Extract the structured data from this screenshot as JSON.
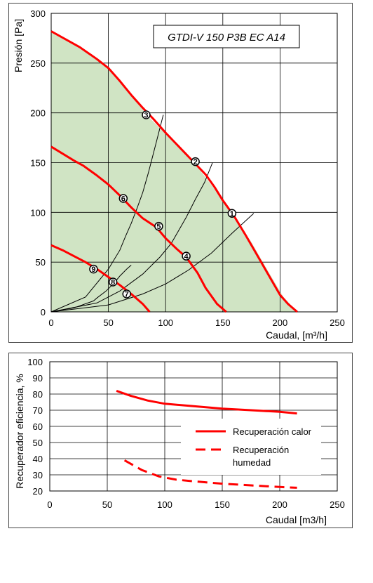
{
  "chart_data": [
    {
      "type": "line",
      "title": "GTDI-V 150 P3B EC A14",
      "xlabel": "Caudal, [m³/h]",
      "ylabel": "Presión [Pa]",
      "xlim": [
        0,
        250
      ],
      "ylim": [
        0,
        300
      ],
      "xticks": [
        "0",
        "50",
        "100",
        "150",
        "200",
        "250"
      ],
      "yticks": [
        "0",
        "50",
        "100",
        "150",
        "200",
        "250",
        "300"
      ],
      "grid": true,
      "colors": {
        "fan_curve": "#ff0000",
        "system_curve": "#000000",
        "area": "#d0e4c4"
      },
      "operating_area": [
        [
          0,
          282
        ],
        [
          25,
          266
        ],
        [
          50,
          246
        ],
        [
          85,
          196
        ],
        [
          125,
          150
        ],
        [
          143,
          123
        ],
        [
          160,
          95
        ],
        [
          175,
          70
        ],
        [
          190,
          40
        ],
        [
          203,
          15
        ],
        [
          215,
          0
        ],
        [
          0,
          0
        ]
      ],
      "series": [
        {
          "values": [
            [
              0,
              282
            ],
            [
              25,
              266
            ],
            [
              40,
              254
            ],
            [
              50,
              245
            ],
            [
              60,
              232
            ],
            [
              70,
              218
            ],
            [
              80,
              205
            ],
            [
              90,
              193
            ],
            [
              100,
              180
            ],
            [
              110,
              168
            ],
            [
              125,
              150
            ],
            [
              135,
              138
            ],
            [
              143,
              125
            ],
            [
              150,
              112
            ],
            [
              160,
              96
            ],
            [
              170,
              77
            ],
            [
              180,
              57
            ],
            [
              190,
              37
            ],
            [
              200,
              17
            ],
            [
              207,
              8
            ],
            [
              215,
              0
            ]
          ]
        },
        {
          "values": [
            [
              0,
              166
            ],
            [
              20,
              152
            ],
            [
              28,
              147
            ],
            [
              40,
              137
            ],
            [
              50,
              128
            ],
            [
              60,
              117
            ],
            [
              70,
              105
            ],
            [
              80,
              94
            ],
            [
              92,
              85
            ],
            [
              100,
              74
            ],
            [
              110,
              63
            ],
            [
              118,
              55
            ],
            [
              128,
              39
            ],
            [
              135,
              24
            ],
            [
              145,
              8
            ],
            [
              153,
              0
            ]
          ]
        },
        {
          "values": [
            [
              0,
              67
            ],
            [
              10,
              62
            ],
            [
              20,
              56
            ],
            [
              30,
              50
            ],
            [
              40,
              43
            ],
            [
              50,
              35
            ],
            [
              60,
              27
            ],
            [
              70,
              18
            ],
            [
              80,
              8
            ],
            [
              86,
              0
            ]
          ]
        }
      ],
      "system_curves": [
        {
          "values": [
            [
              0,
              0
            ],
            [
              30,
              15
            ],
            [
              50,
              43
            ],
            [
              60,
              62
            ],
            [
              65,
              76
            ],
            [
              70,
              89
            ],
            [
              75,
              104
            ],
            [
              80,
              120
            ],
            [
              85,
              140
            ],
            [
              92,
              171
            ],
            [
              98,
              198
            ]
          ]
        },
        {
          "values": [
            [
              0,
              0
            ],
            [
              40,
              9
            ],
            [
              60,
              21
            ],
            [
              80,
              38
            ],
            [
              95,
              55
            ],
            [
              105,
              69
            ],
            [
              118,
              95
            ],
            [
              126,
              113
            ],
            [
              134,
              130
            ],
            [
              141,
              150
            ]
          ]
        },
        {
          "values": [
            [
              0,
              0
            ],
            [
              50,
              7
            ],
            [
              80,
              18
            ],
            [
              100,
              28
            ],
            [
              120,
              42
            ],
            [
              140,
              59
            ],
            [
              158,
              79
            ],
            [
              177,
              99
            ]
          ]
        },
        {
          "values": [
            [
              0,
              0
            ],
            [
              20,
              4
            ],
            [
              37,
              11
            ],
            [
              40,
              14
            ],
            [
              48,
              21
            ],
            [
              55,
              29
            ],
            [
              60,
              36
            ],
            [
              66,
              43
            ],
            [
              70,
              47
            ]
          ]
        }
      ],
      "markers": [
        {
          "label": "1",
          "x": 158,
          "y": 99
        },
        {
          "label": "2",
          "x": 126,
          "y": 151
        },
        {
          "label": "3",
          "x": 83,
          "y": 198
        },
        {
          "label": "4",
          "x": 118,
          "y": 56
        },
        {
          "label": "5",
          "x": 94,
          "y": 86
        },
        {
          "label": "6",
          "x": 63,
          "y": 114
        },
        {
          "label": "7",
          "x": 66,
          "y": 18
        },
        {
          "label": "8",
          "x": 54,
          "y": 30
        },
        {
          "label": "9",
          "x": 37,
          "y": 43
        }
      ]
    },
    {
      "type": "line",
      "xlabel": "Caudal [m3/h]",
      "ylabel": "Recuperador eficiencia, %",
      "xlim": [
        0,
        250
      ],
      "ylim": [
        20,
        100
      ],
      "xticks": [
        "0",
        "50",
        "100",
        "150",
        "200",
        "250"
      ],
      "yticks": [
        "20",
        "30",
        "40",
        "50",
        "60",
        "70",
        "80",
        "90",
        "100"
      ],
      "grid": true,
      "legend_position": "right",
      "series": [
        {
          "name": "Recuperación calor",
          "style": "solid",
          "color": "#ff0000",
          "values": [
            [
              58,
              82
            ],
            [
              70,
              79
            ],
            [
              85,
              76
            ],
            [
              100,
              74
            ],
            [
              125,
              72.5
            ],
            [
              150,
              71
            ],
            [
              175,
              70
            ],
            [
              200,
              69
            ],
            [
              215,
              68
            ]
          ]
        },
        {
          "name": "Recuperación humedad",
          "style": "dashed",
          "color": "#ff0000",
          "values": [
            [
              65,
              39
            ],
            [
              80,
              33
            ],
            [
              95,
              29
            ],
            [
              110,
              27
            ],
            [
              125,
              26
            ],
            [
              150,
              24.5
            ],
            [
              175,
              23.5
            ],
            [
              200,
              22.5
            ],
            [
              215,
              22
            ]
          ]
        }
      ]
    }
  ]
}
